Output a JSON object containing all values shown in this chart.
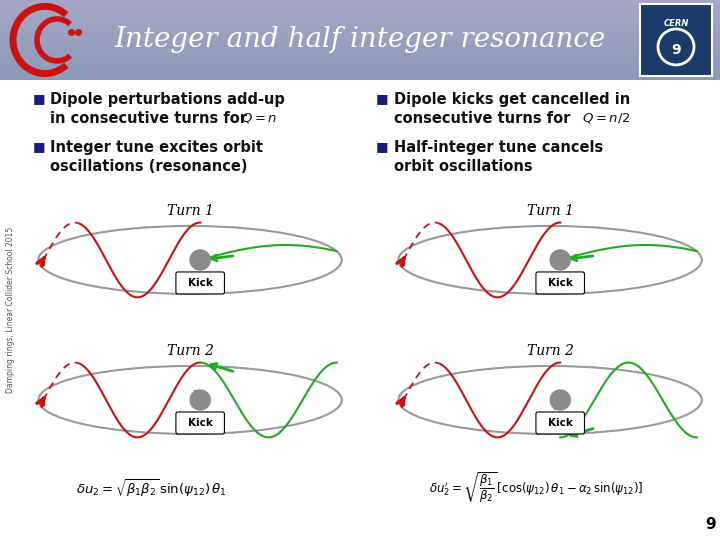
{
  "title": "Integer and half integer resonance",
  "bg_color": "#ffffff",
  "header_color": "#8898b8",
  "left_bullet1_line1": "Dipole perturbations add-up",
  "left_bullet1_line2": "in consecutive turns for",
  "left_bullet2_line1": "Integer tune excites orbit",
  "left_bullet2_line2": "oscillations (resonance)",
  "right_bullet1_line1": "Dipole kicks get cancelled in",
  "right_bullet1_line2": "consecutive turns for",
  "right_bullet2_line1": "Half-integer tune cancels",
  "right_bullet2_line2": "orbit oscillations",
  "left_turn1_label": "Turn 1",
  "left_turn2_label": "Turn 2",
  "right_turn1_label": "Turn 1",
  "right_turn2_label": "Turn 2",
  "kick_label": "Kick",
  "page_number": "9",
  "sidebar_text": "Damping rings, Linear Collider School 2015",
  "red_color": "#cc1111",
  "green_color": "#22aa22",
  "gray_color": "#888888",
  "ellipse_color": "#aaaaaa",
  "bullet_color": "#1a1a80",
  "text_color": "#111111"
}
